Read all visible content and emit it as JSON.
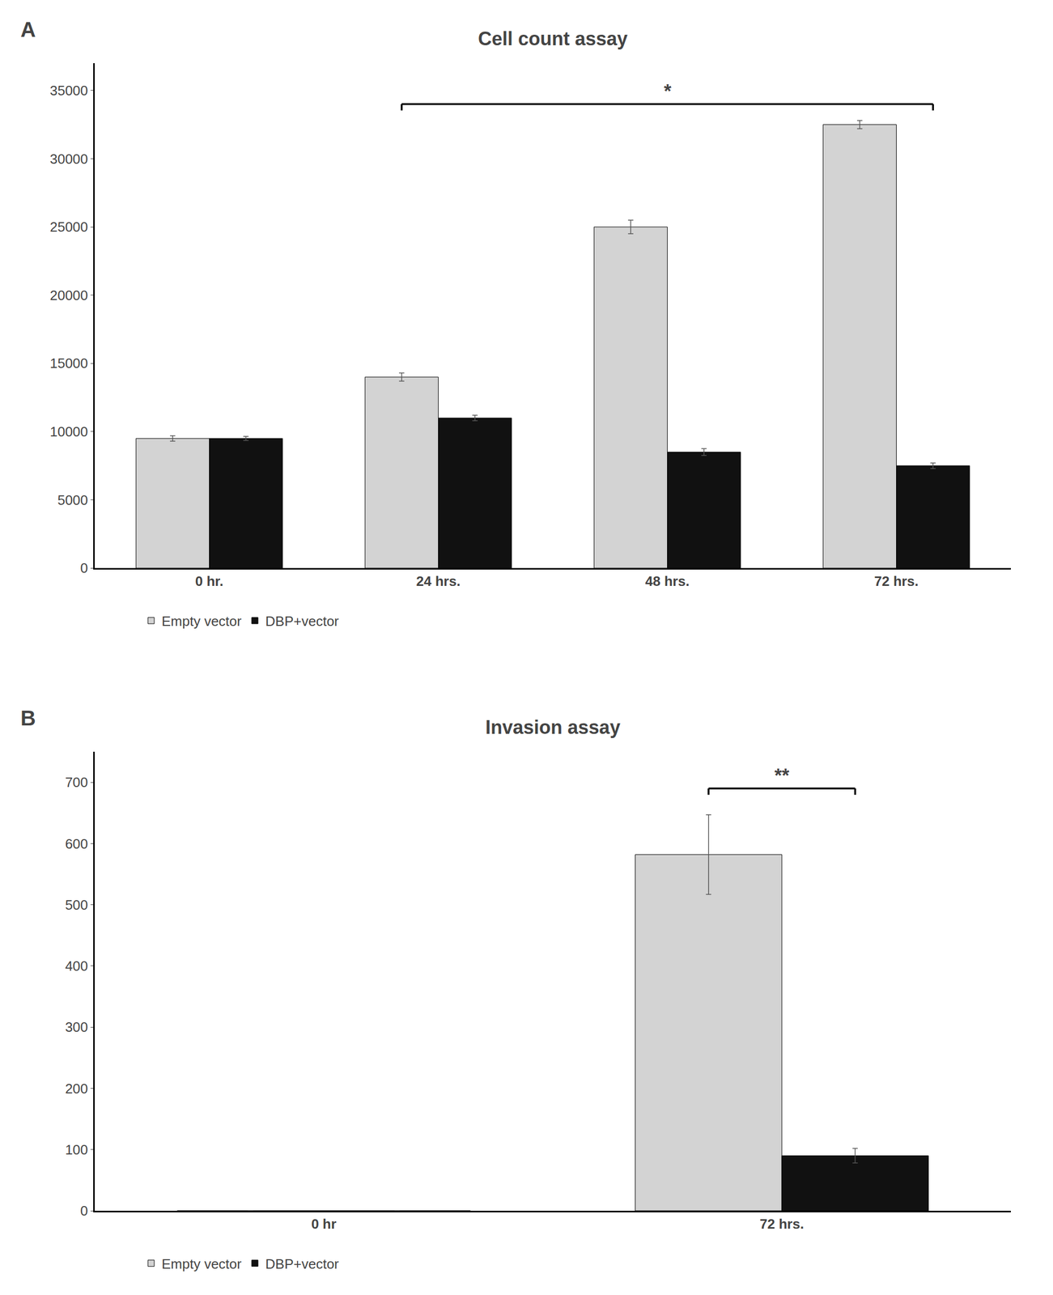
{
  "chart_data": [
    {
      "type": "bar",
      "title": "Cell count assay",
      "panel_label": "A",
      "categories": [
        "0 hr.",
        "24 hrs.",
        "48 hrs.",
        "72 hrs."
      ],
      "series": [
        {
          "name": "Empty vector",
          "color": "#d3d3d3",
          "values": [
            9500,
            14000,
            25000,
            32500
          ],
          "errors": [
            200,
            300,
            500,
            300
          ]
        },
        {
          "name": "DBP+vector",
          "color": "#111111",
          "values": [
            9500,
            11000,
            8500,
            7500
          ],
          "errors": [
            150,
            200,
            250,
            200
          ]
        }
      ],
      "ylim": [
        0,
        37000
      ],
      "yticks": [
        0,
        5000,
        10000,
        15000,
        20000,
        25000,
        30000,
        35000
      ],
      "grid": false,
      "legend": "bottom",
      "annotations": [
        {
          "text": "*",
          "y": 34000,
          "from": "24 hrs.",
          "to": "72 hrs."
        }
      ]
    },
    {
      "type": "bar",
      "title": "Invasion assay",
      "panel_label": "B",
      "categories": [
        "0 hr",
        "72 hrs."
      ],
      "series": [
        {
          "name": "Empty vector",
          "color": "#d3d3d3",
          "values": [
            0,
            582
          ],
          "errors": [
            0,
            65
          ]
        },
        {
          "name": "DBP+vector",
          "color": "#111111",
          "values": [
            0,
            90
          ],
          "errors": [
            0,
            12
          ]
        }
      ],
      "ylim": [
        0,
        750
      ],
      "yticks": [
        0,
        100,
        200,
        300,
        400,
        500,
        600,
        700
      ],
      "grid": false,
      "legend": "bottom",
      "annotations": [
        {
          "text": "**",
          "y": 690,
          "from": "72 hrs.",
          "to": "72 hrs."
        }
      ]
    }
  ]
}
